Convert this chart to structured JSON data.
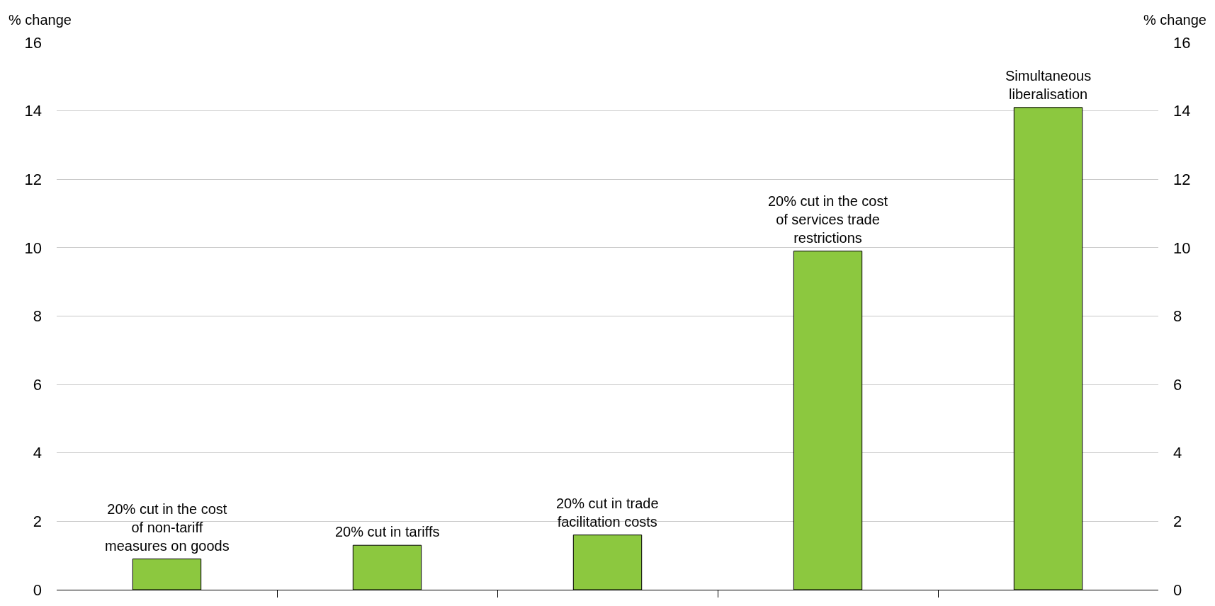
{
  "chart_data": {
    "type": "bar",
    "ylabel": "% change",
    "y2label": "% change",
    "categories": [
      "20% cut in the cost of non-tariff measures on goods",
      "20% cut in tariffs",
      "20% cut in trade facilitation costs",
      "20% cut in the cost of services trade restrictions",
      "Simultaneous liberalisation"
    ],
    "values": [
      0.9,
      1.3,
      1.6,
      9.9,
      14.1
    ],
    "color": "#8cc83f",
    "ylim": [
      0,
      16
    ],
    "yticks": [
      0,
      2,
      4,
      6,
      8,
      10,
      12,
      14,
      16
    ],
    "y2lim": [
      0,
      16
    ],
    "y2ticks": [
      0,
      2,
      4,
      6,
      8,
      10,
      12,
      14,
      16
    ],
    "grid": "y",
    "legend": false
  }
}
